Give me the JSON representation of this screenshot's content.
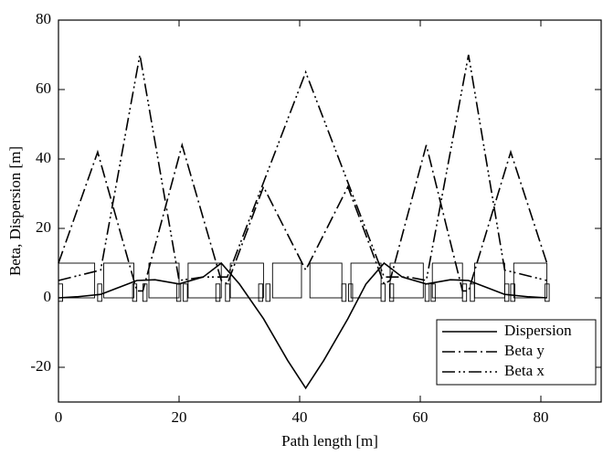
{
  "chart_data": {
    "type": "line",
    "xlabel": "Path length [m]",
    "ylabel": "Beta, Dispersion [m]",
    "xlim": [
      0,
      90
    ],
    "ylim": [
      -30,
      80
    ],
    "xticks": [
      0,
      20,
      40,
      60,
      80
    ],
    "yticks": [
      -20,
      0,
      20,
      40,
      60,
      80
    ],
    "legend": "lower right",
    "series": [
      {
        "name": "Dispersion",
        "color": "#000000",
        "linestyle": "solid",
        "x": [
          0,
          3,
          7,
          10,
          13,
          16,
          20,
          24,
          27,
          30,
          34,
          38,
          41,
          44,
          48,
          51,
          54,
          57,
          61,
          65,
          68,
          71,
          74,
          78,
          81
        ],
        "values": [
          0,
          0.3,
          1,
          3,
          5,
          5.2,
          4,
          6,
          10,
          4,
          -6,
          -18,
          -26,
          -18,
          -6,
          4,
          10,
          6,
          4,
          5.2,
          5,
          3,
          1,
          0.3,
          0
        ]
      },
      {
        "name": "Beta y",
        "color": "#000000",
        "linestyle": "dashdot",
        "x": [
          0,
          6.5,
          13,
          14,
          20.5,
          27,
          28,
          34,
          41,
          48,
          54,
          55,
          61,
          67,
          68,
          75,
          81
        ],
        "values": [
          10,
          42,
          2,
          2,
          44,
          5,
          4,
          32,
          8,
          32,
          4,
          5,
          44,
          2,
          2,
          42,
          10
        ]
      },
      {
        "name": "Beta x",
        "color": "#000000",
        "linestyle": "dashdotdot",
        "x": [
          0,
          7,
          13.5,
          20,
          24,
          28,
          41,
          54,
          58,
          61,
          68,
          74,
          81
        ],
        "values": [
          5,
          8,
          70,
          5,
          6,
          6,
          65,
          6,
          6,
          5,
          70,
          8,
          5
        ]
      }
    ]
  }
}
